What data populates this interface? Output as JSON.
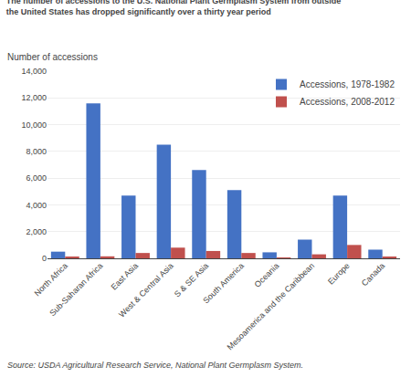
{
  "chart_data": {
    "type": "bar",
    "title": "The number of accessions to the U.S. National Plant Germplasm System from outside",
    "subtitle": "the United States has dropped significantly over a thirty year period",
    "ylabel": "Number of accessions",
    "annotations": [
      "Source: USDA Agricultural Research Service, National Plant Germplasm System."
    ],
    "categories": [
      "North Africa",
      "Sub-Saharan Africa",
      "East Asia",
      "West & Central Asia",
      "S & SE Asia",
      "South America",
      "Oceania",
      "Mesoamerica and the Caribbean",
      "Europe",
      "Canada"
    ],
    "series": [
      {
        "name": "Accessions, 1978-1982",
        "color": "#4472C4",
        "values": [
          500,
          11600,
          4700,
          8500,
          6600,
          5100,
          450,
          1400,
          4700,
          650
        ]
      },
      {
        "name": "Accessions, 2008-2012",
        "color": "#C0504D",
        "values": [
          100,
          150,
          400,
          800,
          550,
          400,
          50,
          300,
          1000,
          100
        ]
      }
    ],
    "ylim": [
      0,
      14000
    ],
    "yticks": [
      0,
      {
        "value": 2000,
        "label": "2,000"
      },
      {
        "value": 4000,
        "label": "4,000"
      },
      {
        "value": 6000,
        "label": "6,000"
      },
      {
        "value": 8000,
        "label": "8,000"
      },
      {
        "value": 10000,
        "label": "10,000"
      },
      {
        "value": 12000,
        "label": "12,000"
      },
      {
        "value": 14000,
        "label": "14,000"
      }
    ],
    "grid": true,
    "legend": "upper right"
  }
}
